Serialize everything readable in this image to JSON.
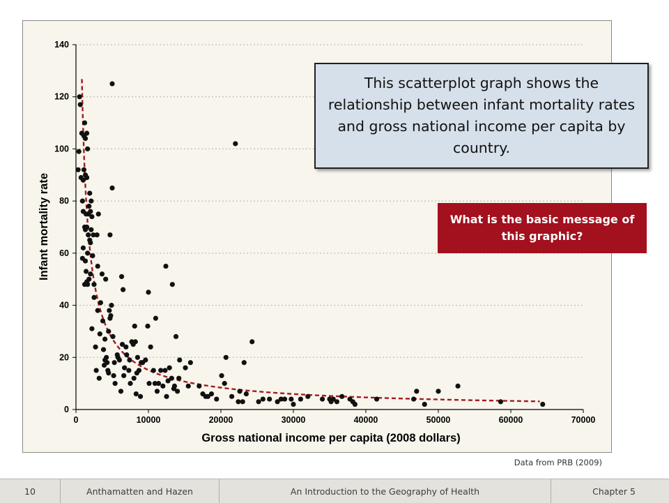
{
  "slide": {
    "callout_text": "This scatterplot graph shows the relationship between infant mortality rates and gross national income per capita by country.",
    "question_text": "What is the basic message of this graphic?",
    "source_note": "Data from PRB (2009)",
    "colors": {
      "question_bg": "#a3101e",
      "callout_bg": "#d6e0ea",
      "trend": "#a31a20",
      "points": "#111111"
    }
  },
  "footer": {
    "page_number": "10",
    "authors": "Anthamatten and Hazen",
    "book_title": "An Introduction to the Geography of Health",
    "chapter": "Chapter 5"
  },
  "chart_data": {
    "type": "scatter",
    "title": "",
    "xlabel": "Gross national income per capita (2008 dollars)",
    "ylabel": "Infant mortality rate",
    "xlim": [
      0,
      70000
    ],
    "ylim": [
      0,
      140
    ],
    "xticks": [
      0,
      10000,
      20000,
      30000,
      40000,
      50000,
      60000,
      70000
    ],
    "yticks": [
      0,
      20,
      40,
      60,
      80,
      100,
      120,
      140
    ],
    "grid": "horizontal dotted",
    "points": [
      [
        300,
        92
      ],
      [
        400,
        99
      ],
      [
        500,
        120
      ],
      [
        600,
        117
      ],
      [
        700,
        89
      ],
      [
        800,
        106
      ],
      [
        900,
        58
      ],
      [
        900,
        80
      ],
      [
        1000,
        76
      ],
      [
        1000,
        62
      ],
      [
        1000,
        88
      ],
      [
        1100,
        92
      ],
      [
        1100,
        105
      ],
      [
        1200,
        110
      ],
      [
        1200,
        70
      ],
      [
        1200,
        48
      ],
      [
        1300,
        104
      ],
      [
        1300,
        90
      ],
      [
        1300,
        69
      ],
      [
        1300,
        57
      ],
      [
        1400,
        75
      ],
      [
        1400,
        53
      ],
      [
        1500,
        106
      ],
      [
        1500,
        70
      ],
      [
        1500,
        49
      ],
      [
        1500,
        89
      ],
      [
        1600,
        100
      ],
      [
        1600,
        60
      ],
      [
        1600,
        48
      ],
      [
        1700,
        75
      ],
      [
        1700,
        67
      ],
      [
        1800,
        78
      ],
      [
        1800,
        50
      ],
      [
        1900,
        65
      ],
      [
        1900,
        83
      ],
      [
        2000,
        64
      ],
      [
        2000,
        76
      ],
      [
        2000,
        52
      ],
      [
        2100,
        80
      ],
      [
        2100,
        69
      ],
      [
        2200,
        74
      ],
      [
        2200,
        31
      ],
      [
        2300,
        59
      ],
      [
        2400,
        67
      ],
      [
        2500,
        43
      ],
      [
        2500,
        48
      ],
      [
        2700,
        24
      ],
      [
        2800,
        15
      ],
      [
        2900,
        67
      ],
      [
        3000,
        55
      ],
      [
        3000,
        38
      ],
      [
        3100,
        75
      ],
      [
        3200,
        12
      ],
      [
        3300,
        29
      ],
      [
        3400,
        41
      ],
      [
        3600,
        52
      ],
      [
        3700,
        34
      ],
      [
        3800,
        23
      ],
      [
        3900,
        17
      ],
      [
        4000,
        27
      ],
      [
        4000,
        19
      ],
      [
        4100,
        50
      ],
      [
        4200,
        20
      ],
      [
        4300,
        18
      ],
      [
        4400,
        15
      ],
      [
        4500,
        14
      ],
      [
        4500,
        30
      ],
      [
        4600,
        38
      ],
      [
        4700,
        35
      ],
      [
        4700,
        67
      ],
      [
        4800,
        36
      ],
      [
        4900,
        40
      ],
      [
        5000,
        125
      ],
      [
        5000,
        85
      ],
      [
        5100,
        28
      ],
      [
        5200,
        13
      ],
      [
        5300,
        18
      ],
      [
        5400,
        10
      ],
      [
        5700,
        21
      ],
      [
        5800,
        20
      ],
      [
        6000,
        19
      ],
      [
        6200,
        7
      ],
      [
        6300,
        51
      ],
      [
        6400,
        25
      ],
      [
        6500,
        46
      ],
      [
        6600,
        13
      ],
      [
        6700,
        16
      ],
      [
        6900,
        24
      ],
      [
        7000,
        21
      ],
      [
        7300,
        15
      ],
      [
        7400,
        19
      ],
      [
        7500,
        10
      ],
      [
        7700,
        26
      ],
      [
        7900,
        25
      ],
      [
        8000,
        12
      ],
      [
        8100,
        32
      ],
      [
        8200,
        26
      ],
      [
        8300,
        6
      ],
      [
        8400,
        14
      ],
      [
        8500,
        20
      ],
      [
        8700,
        15
      ],
      [
        8900,
        5
      ],
      [
        9000,
        18
      ],
      [
        9200,
        18
      ],
      [
        9600,
        19
      ],
      [
        9900,
        32
      ],
      [
        10000,
        45
      ],
      [
        10100,
        10
      ],
      [
        10300,
        24
      ],
      [
        10700,
        15
      ],
      [
        10900,
        10
      ],
      [
        11000,
        35
      ],
      [
        11200,
        7
      ],
      [
        11400,
        10
      ],
      [
        11700,
        15
      ],
      [
        12000,
        9
      ],
      [
        12300,
        15
      ],
      [
        12400,
        55
      ],
      [
        12500,
        5
      ],
      [
        12700,
        11
      ],
      [
        12900,
        16
      ],
      [
        13200,
        12
      ],
      [
        13300,
        48
      ],
      [
        13500,
        8
      ],
      [
        13600,
        9
      ],
      [
        13800,
        28
      ],
      [
        14000,
        7
      ],
      [
        14200,
        12
      ],
      [
        14300,
        19
      ],
      [
        15100,
        16
      ],
      [
        15500,
        9
      ],
      [
        15800,
        18
      ],
      [
        17000,
        9
      ],
      [
        17500,
        6
      ],
      [
        17900,
        5
      ],
      [
        18200,
        5
      ],
      [
        18700,
        6
      ],
      [
        19400,
        4
      ],
      [
        20100,
        13
      ],
      [
        20500,
        10
      ],
      [
        20700,
        20
      ],
      [
        21500,
        5
      ],
      [
        22000,
        102
      ],
      [
        22400,
        3
      ],
      [
        22600,
        7
      ],
      [
        23000,
        3
      ],
      [
        23200,
        18
      ],
      [
        23500,
        6
      ],
      [
        24300,
        26
      ],
      [
        25200,
        3
      ],
      [
        25800,
        4
      ],
      [
        26700,
        4
      ],
      [
        27800,
        3
      ],
      [
        28300,
        4
      ],
      [
        28800,
        4
      ],
      [
        29700,
        4
      ],
      [
        30000,
        2
      ],
      [
        31000,
        4
      ],
      [
        32000,
        5
      ],
      [
        34000,
        4
      ],
      [
        35000,
        4
      ],
      [
        35200,
        3
      ],
      [
        35500,
        4
      ],
      [
        36000,
        3
      ],
      [
        36700,
        5
      ],
      [
        37800,
        4
      ],
      [
        38200,
        3
      ],
      [
        38500,
        2
      ],
      [
        41500,
        4
      ],
      [
        46600,
        4
      ],
      [
        47000,
        7
      ],
      [
        48100,
        2
      ],
      [
        50000,
        7
      ],
      [
        52700,
        9
      ],
      [
        58600,
        3
      ],
      [
        64400,
        2
      ]
    ],
    "trend": {
      "type": "power",
      "style": "dashed",
      "color": "#a31a20",
      "a": 38000,
      "b": -0.85,
      "x_range": [
        820,
        64000
      ]
    }
  }
}
